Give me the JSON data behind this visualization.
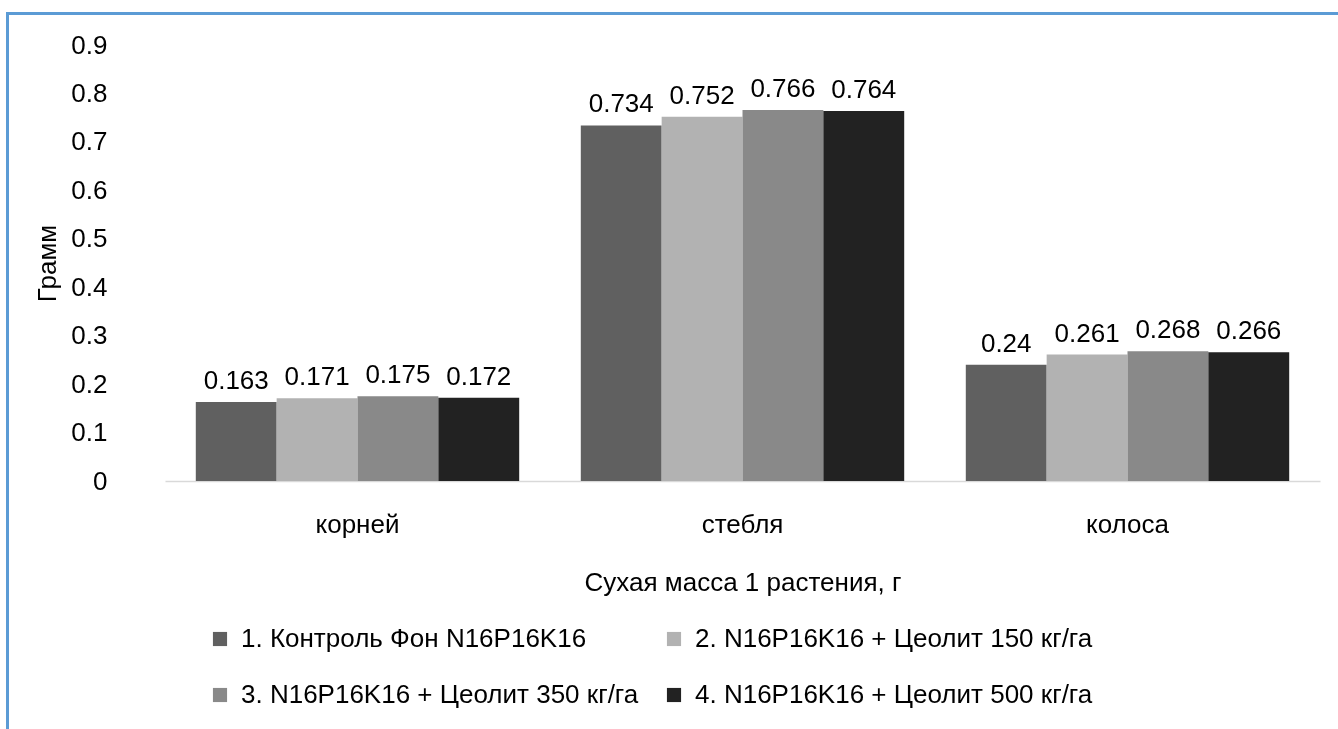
{
  "chart_data": {
    "type": "bar",
    "ylabel": "Грамм",
    "xlabel": "Сухая масса 1 растения, г",
    "categories": [
      "корней",
      "стебля",
      "колоса"
    ],
    "series": [
      {
        "name": "1. Контроль Фон N16P16K16",
        "color": "#606060",
        "values": [
          0.163,
          0.734,
          0.24
        ]
      },
      {
        "name": "2. N16P16K16 + Цеолит 150 кг/га",
        "color": "#b2b2b2",
        "values": [
          0.171,
          0.752,
          0.261
        ]
      },
      {
        "name": "3. N16P16K16 + Цеолит 350 кг/га",
        "color": "#898989",
        "values": [
          0.175,
          0.766,
          0.268
        ]
      },
      {
        "name": "4. N16P16K16 + Цеолит 500 кг/га",
        "color": "#222222",
        "values": [
          0.172,
          0.764,
          0.266
        ]
      }
    ],
    "ylim": [
      0,
      0.9
    ],
    "yticks": [
      0,
      0.1,
      0.2,
      0.3,
      0.4,
      0.5,
      0.6,
      0.7,
      0.8,
      0.9
    ],
    "legend": "bottom",
    "data_labels": true
  }
}
